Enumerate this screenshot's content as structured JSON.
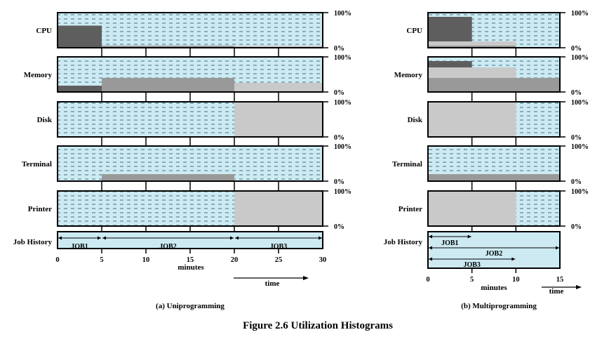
{
  "figure_title": "Figure 2.6  Utilization Histograms",
  "colors": {
    "background_fill": "#cdeaf2",
    "dash": "#3d7187",
    "job1": "#5e5e5e",
    "job2": "#999999",
    "job3": "#c9c9c9",
    "border": "#000000"
  },
  "panels": [
    {
      "id": "uni",
      "caption": "(a) Uniprogramming",
      "x_ticks": [
        "0",
        "5",
        "10",
        "15",
        "20",
        "25",
        "30"
      ],
      "x_label": "minutes",
      "time_label": "time",
      "job_history_label": "Job History",
      "jobs": [
        {
          "label": "JOB1",
          "start": 0,
          "end": 5
        },
        {
          "label": "JOB2",
          "start": 5,
          "end": 20
        },
        {
          "label": "JOB3",
          "start": 20,
          "end": 30
        }
      ]
    },
    {
      "id": "multi",
      "caption": "(b) Multiprogramming",
      "x_ticks": [
        "0",
        "5",
        "10",
        "15"
      ],
      "x_label": "minutes",
      "time_label": "time",
      "job_history_label": "Job History",
      "jobs": [
        {
          "label": "JOB1",
          "start": 0,
          "end": 5
        },
        {
          "label": "JOB2",
          "start": 0,
          "end": 15
        },
        {
          "label": "JOB3",
          "start": 0,
          "end": 10
        }
      ]
    }
  ],
  "chart_data": [
    {
      "type": "area",
      "title": "(a) Uniprogramming",
      "xlabel": "minutes",
      "x_range": [
        0,
        30
      ],
      "y_range": [
        0,
        100
      ],
      "y_ticks": [
        "100%",
        "0%"
      ],
      "rows": [
        {
          "label": "CPU",
          "segments": [
            {
              "job": "JOB1",
              "start": 0,
              "end": 5,
              "from": 0,
              "to": 63
            },
            {
              "job": "JOB2",
              "start": 5,
              "end": 20,
              "from": 0,
              "to": 6
            },
            {
              "job": "JOB3",
              "start": 20,
              "end": 30,
              "from": 0,
              "to": 6
            }
          ]
        },
        {
          "label": "Memory",
          "segments": [
            {
              "job": "JOB1",
              "start": 0,
              "end": 5,
              "from": 0,
              "to": 18
            },
            {
              "job": "JOB2",
              "start": 5,
              "end": 20,
              "from": 0,
              "to": 40
            },
            {
              "job": "JOB3",
              "start": 20,
              "end": 30,
              "from": 0,
              "to": 26
            }
          ]
        },
        {
          "label": "Disk",
          "segments": [
            {
              "job": "JOB3",
              "start": 20,
              "end": 30,
              "from": 0,
              "to": 100
            }
          ]
        },
        {
          "label": "Terminal",
          "segments": [
            {
              "job": "JOB2",
              "start": 5,
              "end": 20,
              "from": 0,
              "to": 20
            }
          ]
        },
        {
          "label": "Printer",
          "segments": [
            {
              "job": "JOB3",
              "start": 20,
              "end": 30,
              "from": 0,
              "to": 100
            }
          ]
        }
      ]
    },
    {
      "type": "area",
      "title": "(b) Multiprogramming",
      "xlabel": "minutes",
      "x_range": [
        0,
        15
      ],
      "y_range": [
        0,
        100
      ],
      "y_ticks": [
        "100%",
        "0%"
      ],
      "rows": [
        {
          "label": "CPU",
          "segments": [
            {
              "job": "JOB2",
              "start": 0,
              "end": 10,
              "from": 0,
              "to": 6
            },
            {
              "job": "JOB3",
              "start": 0,
              "end": 10,
              "from": 6,
              "to": 18
            },
            {
              "job": "JOB1",
              "start": 0,
              "end": 5,
              "from": 18,
              "to": 88
            }
          ]
        },
        {
          "label": "Memory",
          "segments": [
            {
              "job": "JOB2",
              "start": 0,
              "end": 15,
              "from": 0,
              "to": 40
            },
            {
              "job": "JOB3",
              "start": 0,
              "end": 10,
              "from": 40,
              "to": 70
            },
            {
              "job": "JOB1",
              "start": 0,
              "end": 5,
              "from": 70,
              "to": 88
            }
          ]
        },
        {
          "label": "Disk",
          "segments": [
            {
              "job": "JOB3",
              "start": 0,
              "end": 10,
              "from": 0,
              "to": 100
            }
          ]
        },
        {
          "label": "Terminal",
          "segments": [
            {
              "job": "JOB2",
              "start": 0,
              "end": 15,
              "from": 0,
              "to": 20
            }
          ]
        },
        {
          "label": "Printer",
          "segments": [
            {
              "job": "JOB3",
              "start": 0,
              "end": 10,
              "from": 0,
              "to": 100
            }
          ]
        }
      ]
    }
  ]
}
